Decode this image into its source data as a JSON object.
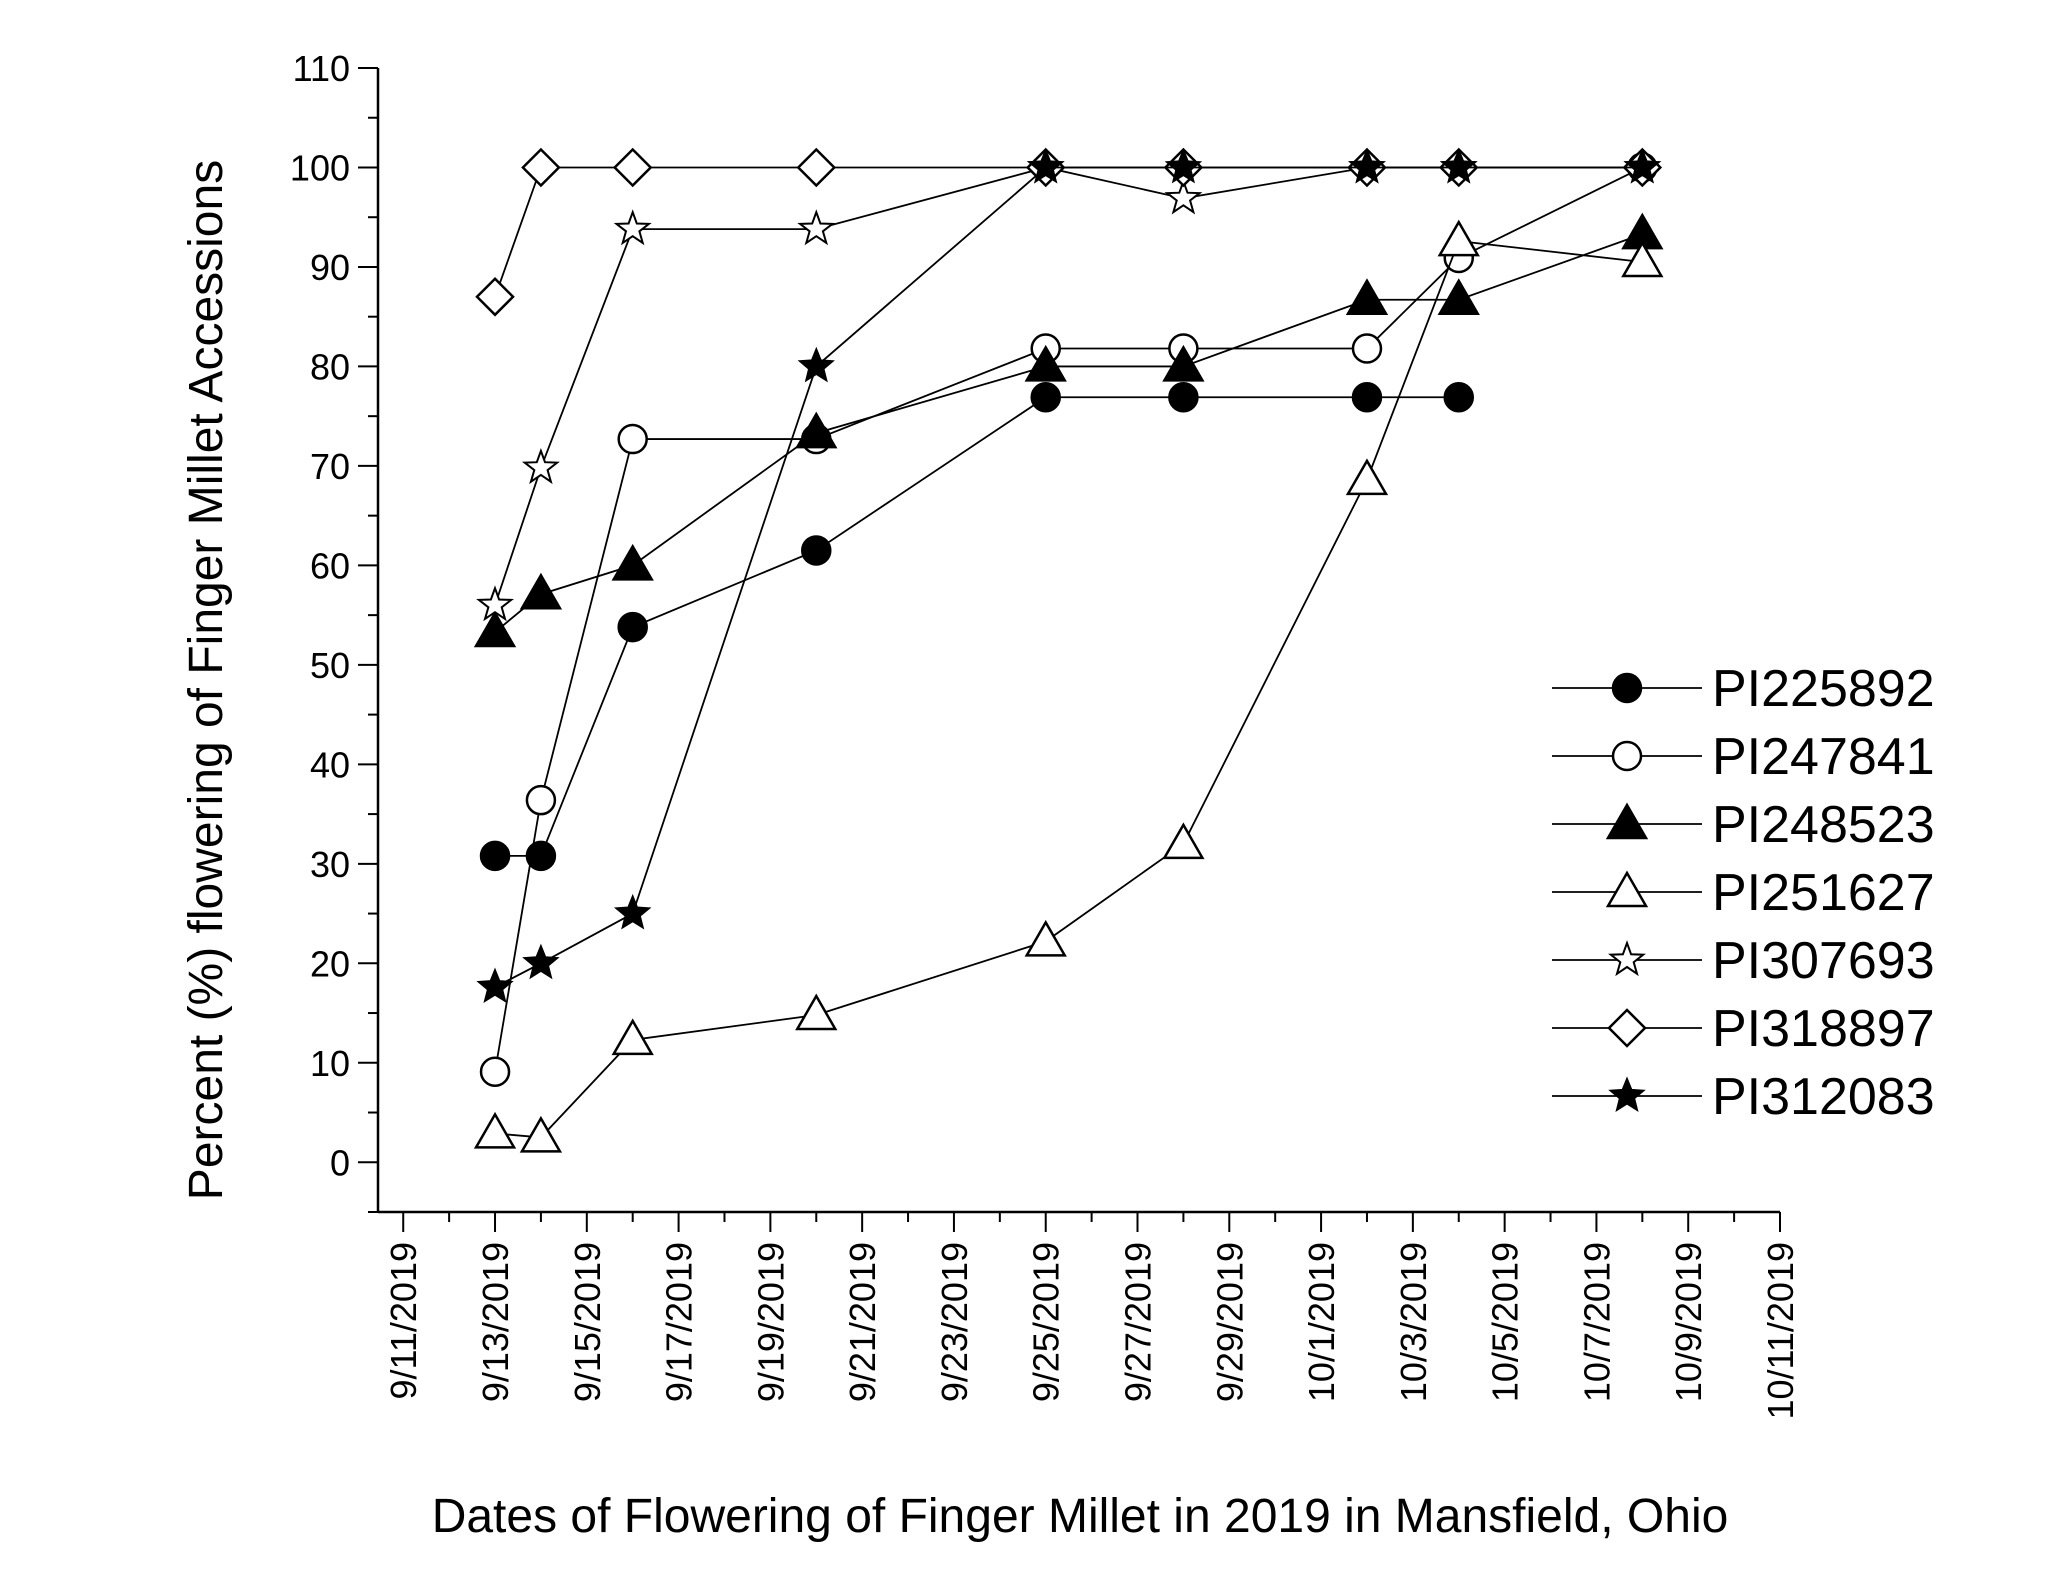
{
  "chart_data": {
    "type": "line",
    "xlabel": "Dates of Flowering of Finger Millet in 2019 in Mansfield, Ohio",
    "ylabel": "Percent (%) flowering of Finger Millet Accessions",
    "ylim": [
      -5,
      110
    ],
    "y_ticks": [
      0,
      10,
      20,
      30,
      40,
      50,
      60,
      70,
      80,
      90,
      100,
      110
    ],
    "xlim": [
      "2019-09-11",
      "2019-10-11"
    ],
    "x_ticks": [
      "9/11/2019",
      "9/13/2019",
      "9/15/2019",
      "9/17/2019",
      "9/19/2019",
      "9/21/2019",
      "9/23/2019",
      "9/25/2019",
      "9/27/2019",
      "9/29/2019",
      "10/1/2019",
      "10/3/2019",
      "10/5/2019",
      "10/7/2019",
      "10/9/2019",
      "10/11/2019"
    ],
    "grid": false,
    "legend": "right",
    "series": [
      {
        "name": "PI225892",
        "marker": "circle",
        "fill": "filled",
        "x": [
          "2019-09-13",
          "2019-09-14",
          "2019-09-16",
          "2019-09-20",
          "2019-09-25",
          "2019-09-28",
          "2019-10-02",
          "2019-10-04"
        ],
        "values": [
          30.8,
          30.8,
          53.8,
          61.5,
          76.9,
          76.9,
          76.9,
          76.9
        ]
      },
      {
        "name": "PI247841",
        "marker": "circle",
        "fill": "open",
        "x": [
          "2019-09-13",
          "2019-09-14",
          "2019-09-16",
          "2019-09-20",
          "2019-09-25",
          "2019-09-28",
          "2019-10-02",
          "2019-10-04",
          "2019-10-08"
        ],
        "values": [
          9.1,
          36.4,
          72.7,
          72.7,
          81.8,
          81.8,
          81.8,
          90.9,
          100
        ]
      },
      {
        "name": "PI248523",
        "marker": "triangle",
        "fill": "filled",
        "x": [
          "2019-09-13",
          "2019-09-14",
          "2019-09-16",
          "2019-09-20",
          "2019-09-25",
          "2019-09-28",
          "2019-10-02",
          "2019-10-04",
          "2019-10-08"
        ],
        "values": [
          53.3,
          57.1,
          60,
          73.3,
          80,
          80,
          86.7,
          86.7,
          93.3
        ]
      },
      {
        "name": "PI251627",
        "marker": "triangle",
        "fill": "open",
        "x": [
          "2019-09-13",
          "2019-09-14",
          "2019-09-16",
          "2019-09-20",
          "2019-09-25",
          "2019-09-28",
          "2019-10-02",
          "2019-10-04",
          "2019-10-08"
        ],
        "values": [
          2.9,
          2.5,
          12.3,
          14.8,
          22.2,
          32,
          68.6,
          92.6,
          90.5
        ]
      },
      {
        "name": "PI307693",
        "marker": "star",
        "fill": "open",
        "x": [
          "2019-09-13",
          "2019-09-14",
          "2019-09-16",
          "2019-09-20",
          "2019-09-25",
          "2019-09-28",
          "2019-10-02",
          "2019-10-04",
          "2019-10-08"
        ],
        "values": [
          56,
          69.8,
          93.8,
          93.8,
          100,
          96.9,
          100,
          100,
          100
        ]
      },
      {
        "name": "PI318897",
        "marker": "diamond",
        "fill": "open",
        "x": [
          "2019-09-13",
          "2019-09-14",
          "2019-09-16",
          "2019-09-20",
          "2019-09-25",
          "2019-09-28",
          "2019-10-02",
          "2019-10-04",
          "2019-10-08"
        ],
        "values": [
          87,
          100,
          100,
          100,
          100,
          100,
          100,
          100,
          100
        ]
      },
      {
        "name": "PI312083",
        "marker": "star",
        "fill": "filled",
        "x": [
          "2019-09-13",
          "2019-09-14",
          "2019-09-16",
          "2019-09-20",
          "2019-09-25",
          "2019-09-28",
          "2019-10-02",
          "2019-10-04",
          "2019-10-08"
        ],
        "values": [
          17.6,
          20,
          25,
          80,
          100,
          100,
          100,
          100,
          100
        ]
      }
    ]
  }
}
